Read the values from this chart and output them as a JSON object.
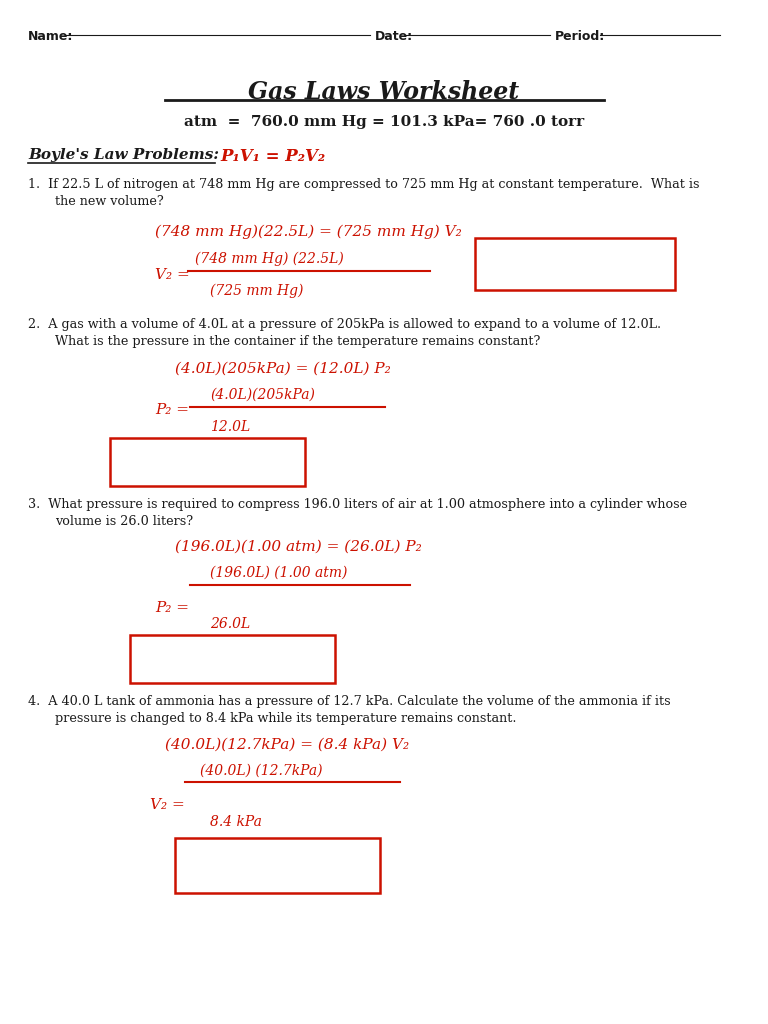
{
  "bg_color": "#ffffff",
  "black_color": "#1a1a1a",
  "red_color": "#cc1100",
  "title": "Gas Laws Worksheet",
  "header": "atm  =  760.0 mm Hg = 101.3 kPa= 760 .0 torr",
  "section": "Boyle's Law Problems:",
  "formula": "P₁V₁ = P₂V₂"
}
